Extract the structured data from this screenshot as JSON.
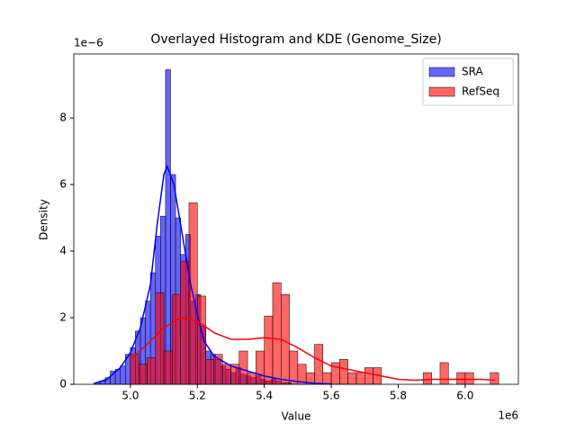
{
  "chart_data": {
    "type": "histogram",
    "title": "Overlayed Histogram and KDE (Genome_Size)",
    "x_label": "Value",
    "y_label": "Density",
    "x_offset_label": "1e6",
    "y_offset_label": "1e−6",
    "xlim": [
      4.831,
      6.159
    ],
    "ylim": [
      0,
      9.92
    ],
    "xticks": [
      {
        "value": 5.0,
        "label": "5.0"
      },
      {
        "value": 5.2,
        "label": "5.2"
      },
      {
        "value": 5.4,
        "label": "5.4"
      },
      {
        "value": 5.6,
        "label": "5.6"
      },
      {
        "value": 5.8,
        "label": "5.8"
      },
      {
        "value": 6.0,
        "label": "6.0"
      }
    ],
    "yticks": [
      0,
      2,
      4,
      6,
      8
    ],
    "legend": "upper right",
    "bar_opacity": 0.6,
    "series": [
      {
        "name": "SRA",
        "color": "#0000ff",
        "bins": [
          4.895,
          4.91,
          4.925,
          4.94,
          4.955,
          4.97,
          4.985,
          5.0,
          5.015,
          5.03,
          5.045,
          5.06,
          5.075,
          5.09,
          5.105,
          5.12,
          5.135,
          5.15,
          5.165,
          5.18,
          5.195,
          5.21,
          5.225,
          5.24,
          5.255,
          5.27,
          5.285,
          5.3,
          5.315,
          5.33,
          5.345,
          5.36,
          5.375,
          5.39,
          5.405,
          5.42,
          5.435,
          5.45,
          5.465,
          5.48
        ],
        "values": [
          0.05,
          0.1,
          0.2,
          0.4,
          0.45,
          0.55,
          0.9,
          1.1,
          1.6,
          2.0,
          2.5,
          3.35,
          4.45,
          5.05,
          9.45,
          6.3,
          5.0,
          3.9,
          4.5,
          2.5,
          2.7,
          1.75,
          1.0,
          0.9,
          0.75,
          0.55,
          0.45,
          0.35,
          0.5,
          0.3,
          0.25,
          0.2,
          0.25,
          0.15,
          0.1,
          0.15,
          0.1,
          0.05,
          0.05
        ],
        "kde": {
          "x": [
            4.89,
            4.93,
            4.97,
            5.0,
            5.03,
            5.06,
            5.08,
            5.1,
            5.11,
            5.13,
            5.15,
            5.18,
            5.2,
            5.22,
            5.25,
            5.3,
            5.35,
            5.4,
            5.45,
            5.5,
            5.55,
            5.6
          ],
          "y": [
            0.02,
            0.15,
            0.5,
            0.95,
            1.7,
            3.0,
            4.8,
            6.3,
            6.55,
            6.0,
            4.8,
            3.0,
            2.1,
            1.3,
            0.85,
            0.55,
            0.4,
            0.25,
            0.15,
            0.08,
            0.03,
            0.01
          ]
        }
      },
      {
        "name": "RefSeq",
        "color": "#ff0000",
        "bins": [
          5.0,
          5.025,
          5.05,
          5.075,
          5.1,
          5.125,
          5.15,
          5.175,
          5.2,
          5.225,
          5.25,
          5.275,
          5.3,
          5.325,
          5.35,
          5.375,
          5.4,
          5.425,
          5.45,
          5.475,
          5.5,
          5.525,
          5.55,
          5.575,
          5.6,
          5.625,
          5.65,
          5.675,
          5.7,
          5.725,
          5.75,
          5.775,
          5.8,
          5.825,
          5.85,
          5.875,
          5.9,
          5.925,
          5.95,
          5.975,
          6.0,
          6.025,
          6.05,
          6.075,
          6.1
        ],
        "values": [
          0.9,
          0.6,
          0.8,
          2.75,
          1.0,
          2.7,
          3.7,
          5.45,
          2.65,
          0.75,
          0.9,
          0.6,
          0.6,
          1.0,
          0.35,
          1.0,
          2.05,
          3.05,
          2.7,
          1.0,
          0.6,
          0.35,
          1.2,
          0.35,
          0.65,
          0.75,
          0.35,
          0.35,
          0.5,
          0.5,
          0,
          0,
          0,
          0,
          0,
          0.35,
          0,
          0.65,
          0,
          0.35,
          0.35,
          0,
          0,
          0.35
        ],
        "kde": {
          "x": [
            5.0,
            5.05,
            5.1,
            5.15,
            5.2,
            5.25,
            5.3,
            5.35,
            5.4,
            5.45,
            5.5,
            5.55,
            5.6,
            5.65,
            5.7,
            5.75,
            5.8,
            5.85,
            5.9,
            5.95,
            6.0,
            6.05,
            6.09
          ],
          "y": [
            0.75,
            1.2,
            1.7,
            2.0,
            1.9,
            1.55,
            1.35,
            1.35,
            1.4,
            1.35,
            1.1,
            0.8,
            0.55,
            0.45,
            0.35,
            0.25,
            0.15,
            0.12,
            0.15,
            0.15,
            0.15,
            0.15,
            0.12
          ]
        }
      }
    ]
  }
}
